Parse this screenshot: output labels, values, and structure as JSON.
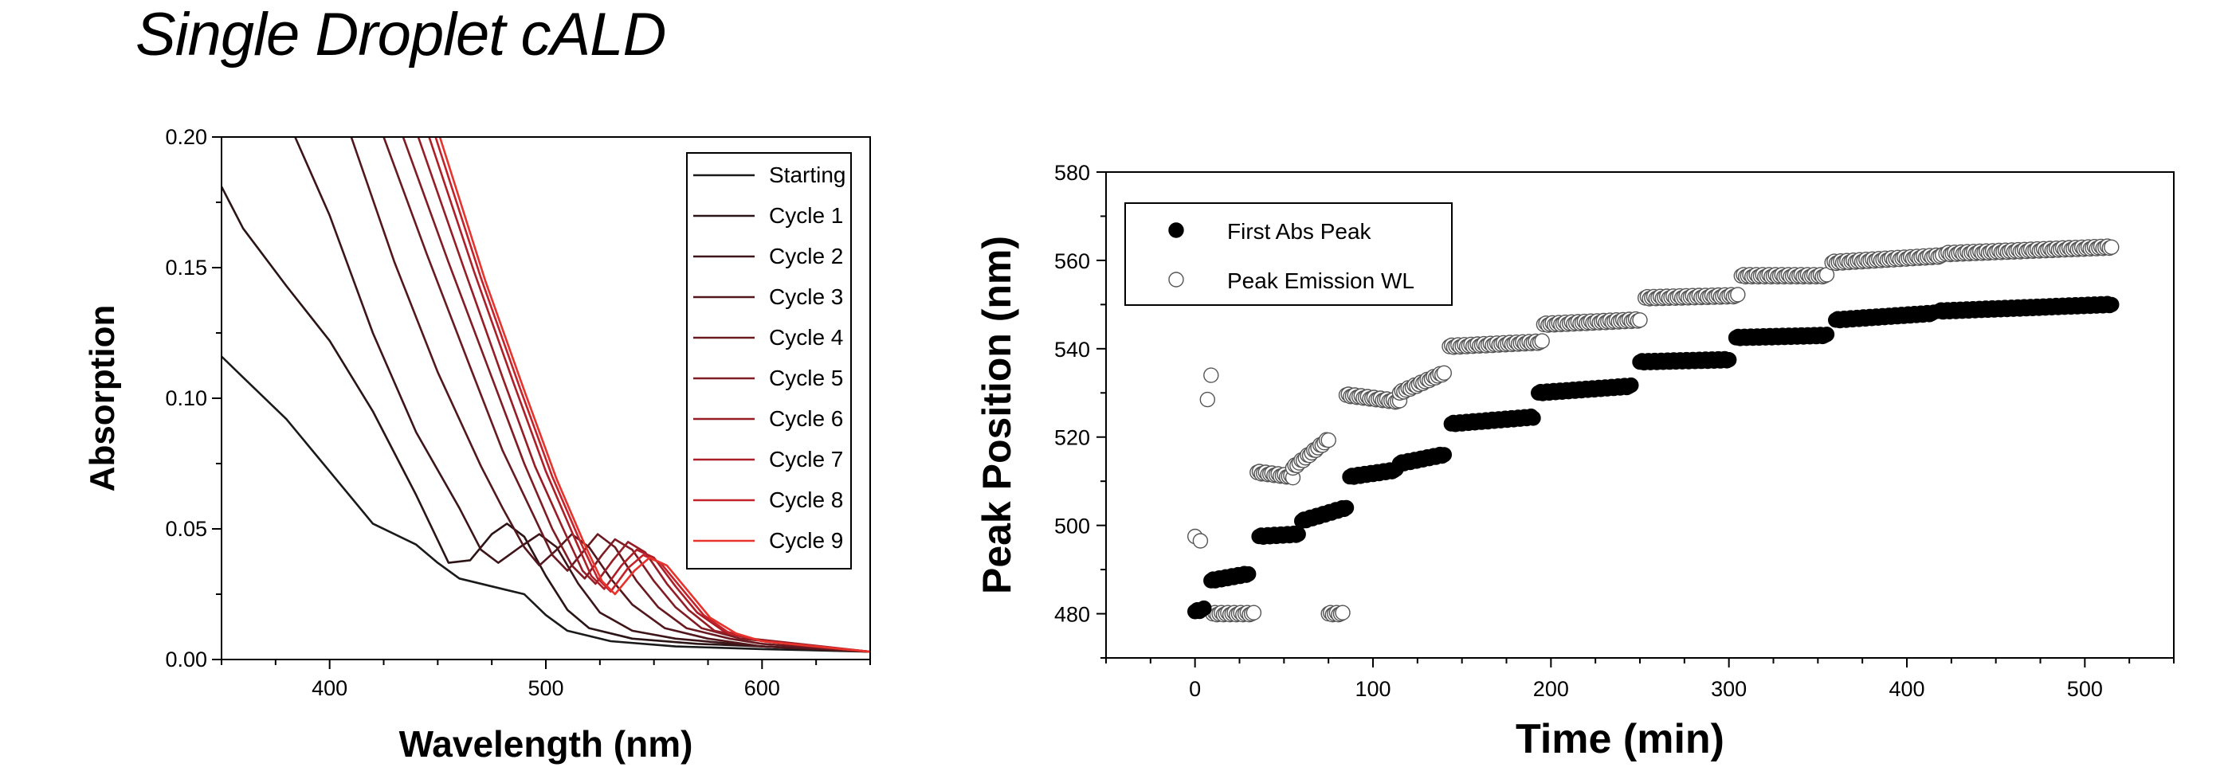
{
  "page": {
    "title": "Single Droplet cALD"
  },
  "chart_data": [
    {
      "type": "line",
      "title": "",
      "xlabel": "Wavelength (nm)",
      "ylabel": "Absorption",
      "xlim": [
        350,
        650
      ],
      "ylim": [
        0,
        0.2
      ],
      "xticks": [
        400,
        500,
        600
      ],
      "xtick_labels": [
        "400",
        "500",
        "600"
      ],
      "yticks": [
        0,
        0.05,
        0.1,
        0.15,
        0.2
      ],
      "ytick_labels": [
        "0.00",
        "0.05",
        "0.10",
        "0.15",
        "0.20"
      ],
      "grid": false,
      "legend_position": "top-right",
      "series": [
        {
          "name": "Starting",
          "color": "#1a1a1a",
          "points": [
            [
              350,
              0.116
            ],
            [
              360,
              0.108
            ],
            [
              380,
              0.092
            ],
            [
              400,
              0.072
            ],
            [
              420,
              0.052
            ],
            [
              430,
              0.048
            ],
            [
              440,
              0.044
            ],
            [
              450,
              0.037
            ],
            [
              460,
              0.031
            ],
            [
              475,
              0.028
            ],
            [
              490,
              0.025
            ],
            [
              500,
              0.017
            ],
            [
              510,
              0.011
            ],
            [
              530,
              0.007
            ],
            [
              560,
              0.005
            ],
            [
              600,
              0.004
            ],
            [
              650,
              0.003
            ]
          ]
        },
        {
          "name": "Cycle 1",
          "color": "#2b1416",
          "points": [
            [
              350,
              0.181
            ],
            [
              360,
              0.165
            ],
            [
              380,
              0.143
            ],
            [
              400,
              0.122
            ],
            [
              420,
              0.095
            ],
            [
              440,
              0.063
            ],
            [
              455,
              0.037
            ],
            [
              465,
              0.038
            ],
            [
              475,
              0.048
            ],
            [
              482,
              0.052
            ],
            [
              490,
              0.047
            ],
            [
              500,
              0.032
            ],
            [
              510,
              0.019
            ],
            [
              520,
              0.012
            ],
            [
              540,
              0.008
            ],
            [
              570,
              0.006
            ],
            [
              600,
              0.005
            ],
            [
              650,
              0.003
            ]
          ]
        },
        {
          "name": "Cycle 2",
          "color": "#3d1519",
          "points": [
            [
              384,
              0.2
            ],
            [
              400,
              0.17
            ],
            [
              420,
              0.125
            ],
            [
              440,
              0.087
            ],
            [
              460,
              0.058
            ],
            [
              470,
              0.042
            ],
            [
              478,
              0.037
            ],
            [
              488,
              0.043
            ],
            [
              497,
              0.048
            ],
            [
              505,
              0.043
            ],
            [
              515,
              0.029
            ],
            [
              525,
              0.018
            ],
            [
              540,
              0.011
            ],
            [
              560,
              0.008
            ],
            [
              600,
              0.005
            ],
            [
              650,
              0.003
            ]
          ]
        },
        {
          "name": "Cycle 3",
          "color": "#52171c",
          "points": [
            [
              410,
              0.2
            ],
            [
              430,
              0.152
            ],
            [
              450,
              0.11
            ],
            [
              470,
              0.074
            ],
            [
              480,
              0.058
            ],
            [
              490,
              0.043
            ],
            [
              497,
              0.036
            ],
            [
              505,
              0.042
            ],
            [
              512,
              0.048
            ],
            [
              520,
              0.043
            ],
            [
              530,
              0.031
            ],
            [
              540,
              0.021
            ],
            [
              555,
              0.012
            ],
            [
              575,
              0.008
            ],
            [
              600,
              0.005
            ],
            [
              650,
              0.003
            ]
          ]
        },
        {
          "name": "Cycle 4",
          "color": "#681a20",
          "points": [
            [
              425,
              0.2
            ],
            [
              445,
              0.155
            ],
            [
              465,
              0.112
            ],
            [
              480,
              0.08
            ],
            [
              495,
              0.054
            ],
            [
              503,
              0.04
            ],
            [
              510,
              0.034
            ],
            [
              518,
              0.042
            ],
            [
              524,
              0.048
            ],
            [
              532,
              0.043
            ],
            [
              542,
              0.03
            ],
            [
              552,
              0.02
            ],
            [
              565,
              0.012
            ],
            [
              585,
              0.008
            ],
            [
              600,
              0.006
            ],
            [
              650,
              0.003
            ]
          ]
        },
        {
          "name": "Cycle 5",
          "color": "#7f1c24",
          "points": [
            [
              434,
              0.2
            ],
            [
              455,
              0.152
            ],
            [
              475,
              0.108
            ],
            [
              490,
              0.075
            ],
            [
              503,
              0.05
            ],
            [
              512,
              0.036
            ],
            [
              518,
              0.031
            ],
            [
              526,
              0.04
            ],
            [
              532,
              0.046
            ],
            [
              540,
              0.042
            ],
            [
              550,
              0.03
            ],
            [
              560,
              0.02
            ],
            [
              572,
              0.012
            ],
            [
              590,
              0.008
            ],
            [
              650,
              0.003
            ]
          ]
        },
        {
          "name": "Cycle 6",
          "color": "#951d26",
          "points": [
            [
              441,
              0.2
            ],
            [
              462,
              0.15
            ],
            [
              480,
              0.108
            ],
            [
              495,
              0.074
            ],
            [
              508,
              0.05
            ],
            [
              517,
              0.034
            ],
            [
              523,
              0.029
            ],
            [
              531,
              0.038
            ],
            [
              538,
              0.045
            ],
            [
              546,
              0.041
            ],
            [
              556,
              0.029
            ],
            [
              566,
              0.019
            ],
            [
              578,
              0.011
            ],
            [
              595,
              0.008
            ],
            [
              650,
              0.003
            ]
          ]
        },
        {
          "name": "Cycle 7",
          "color": "#ad1f28",
          "points": [
            [
              446,
              0.2
            ],
            [
              467,
              0.148
            ],
            [
              485,
              0.106
            ],
            [
              500,
              0.072
            ],
            [
              513,
              0.047
            ],
            [
              521,
              0.032
            ],
            [
              527,
              0.027
            ],
            [
              535,
              0.036
            ],
            [
              542,
              0.042
            ],
            [
              550,
              0.039
            ],
            [
              560,
              0.028
            ],
            [
              570,
              0.018
            ],
            [
              582,
              0.011
            ],
            [
              600,
              0.007
            ],
            [
              650,
              0.003
            ]
          ]
        },
        {
          "name": "Cycle 8",
          "color": "#c4222a",
          "points": [
            [
              449,
              0.2
            ],
            [
              470,
              0.146
            ],
            [
              488,
              0.104
            ],
            [
              503,
              0.07
            ],
            [
              516,
              0.045
            ],
            [
              524,
              0.031
            ],
            [
              530,
              0.026
            ],
            [
              538,
              0.035
            ],
            [
              545,
              0.04
            ],
            [
              553,
              0.037
            ],
            [
              563,
              0.027
            ],
            [
              573,
              0.017
            ],
            [
              585,
              0.01
            ],
            [
              600,
              0.007
            ],
            [
              650,
              0.003
            ]
          ]
        },
        {
          "name": "Cycle 9",
          "color": "#e8332c",
          "points": [
            [
              451,
              0.2
            ],
            [
              472,
              0.145
            ],
            [
              490,
              0.103
            ],
            [
              505,
              0.069
            ],
            [
              518,
              0.044
            ],
            [
              526,
              0.03
            ],
            [
              532,
              0.025
            ],
            [
              541,
              0.034
            ],
            [
              548,
              0.039
            ],
            [
              556,
              0.036
            ],
            [
              566,
              0.026
            ],
            [
              576,
              0.016
            ],
            [
              588,
              0.01
            ],
            [
              600,
              0.007
            ],
            [
              650,
              0.003
            ]
          ]
        }
      ]
    },
    {
      "type": "scatter",
      "title": "",
      "xlabel": "Time (min)",
      "ylabel": "Peak Position (nm)",
      "xlim": [
        -50,
        550
      ],
      "ylim": [
        470,
        580
      ],
      "xticks": [
        0,
        100,
        200,
        300,
        400,
        500
      ],
      "xtick_labels": [
        "0",
        "100",
        "200",
        "300",
        "400",
        "500"
      ],
      "yticks": [
        480,
        500,
        520,
        540,
        560,
        580
      ],
      "ytick_labels": [
        "480",
        "500",
        "520",
        "540",
        "560",
        "580"
      ],
      "grid": false,
      "legend_position": "top-left",
      "series": [
        {
          "name": "First Abs Peak",
          "marker": "filled-circle",
          "segments": [
            {
              "x0": 0,
              "x1": 5,
              "y0": 480.5,
              "y1": 481
            },
            {
              "x0": 9,
              "x1": 30,
              "y0": 487.5,
              "y1": 489
            },
            {
              "x0": 36,
              "x1": 58,
              "y0": 497.5,
              "y1": 498
            },
            {
              "x0": 60,
              "x1": 85,
              "y0": 501,
              "y1": 504
            },
            {
              "x0": 87,
              "x1": 113,
              "y0": 511,
              "y1": 512.5
            },
            {
              "x0": 115,
              "x1": 140,
              "y0": 514,
              "y1": 516
            },
            {
              "x0": 144,
              "x1": 190,
              "y0": 523,
              "y1": 524.5
            },
            {
              "x0": 193,
              "x1": 245,
              "y0": 530,
              "y1": 531.5
            },
            {
              "x0": 250,
              "x1": 300,
              "y0": 537,
              "y1": 537.5
            },
            {
              "x0": 304,
              "x1": 355,
              "y0": 542.5,
              "y1": 543
            },
            {
              "x0": 360,
              "x1": 415,
              "y0": 546.5,
              "y1": 548
            },
            {
              "x0": 418,
              "x1": 515,
              "y0": 548.5,
              "y1": 550
            }
          ]
        },
        {
          "name": "Peak Emission WL",
          "marker": "open-circle",
          "points": [
            [
              0,
              497.5
            ],
            [
              3,
              496.5
            ],
            [
              7,
              528.5
            ],
            [
              9,
              534
            ]
          ],
          "segments": [
            {
              "x0": 10,
              "x1": 33,
              "y0": 480,
              "y1": 480
            },
            {
              "x0": 75,
              "x1": 83,
              "y0": 480,
              "y1": 480
            },
            {
              "x0": 35,
              "x1": 55,
              "y0": 512,
              "y1": 511
            },
            {
              "x0": 55,
              "x1": 75,
              "y0": 513,
              "y1": 519.5
            },
            {
              "x0": 85,
              "x1": 115,
              "y0": 529.5,
              "y1": 528
            },
            {
              "x0": 115,
              "x1": 140,
              "y0": 530,
              "y1": 534.5
            },
            {
              "x0": 143,
              "x1": 195,
              "y0": 540.5,
              "y1": 541.5
            },
            {
              "x0": 196,
              "x1": 250,
              "y0": 545.5,
              "y1": 546.5
            },
            {
              "x0": 253,
              "x1": 305,
              "y0": 551.5,
              "y1": 552
            },
            {
              "x0": 307,
              "x1": 355,
              "y0": 556.5,
              "y1": 556.5
            },
            {
              "x0": 358,
              "x1": 420,
              "y0": 559.5,
              "y1": 561
            },
            {
              "x0": 422,
              "x1": 515,
              "y0": 561.5,
              "y1": 563
            }
          ]
        }
      ]
    }
  ]
}
